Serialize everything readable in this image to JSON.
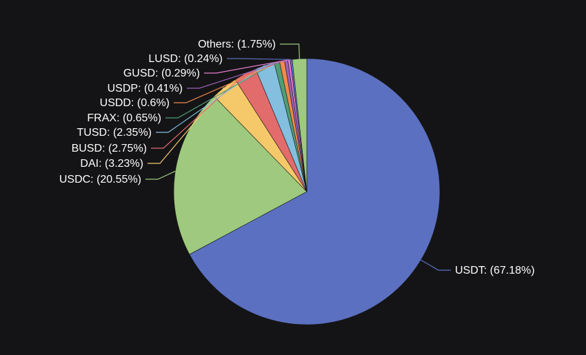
{
  "chart_data": {
    "type": "pie",
    "title": "",
    "legend": "none",
    "slices": [
      {
        "name": "USDT",
        "value": 67.18,
        "label": "USDT: (67.18%)",
        "color": "#5b70c0"
      },
      {
        "name": "USDC",
        "value": 20.55,
        "label": "USDC: (20.55%)",
        "color": "#9ec97e"
      },
      {
        "name": "DAI",
        "value": 3.23,
        "label": "DAI: (3.23%)",
        "color": "#f5c96a"
      },
      {
        "name": "BUSD",
        "value": 2.75,
        "label": "BUSD: (2.75%)",
        "color": "#e26b6b"
      },
      {
        "name": "TUSD",
        "value": 2.35,
        "label": "TUSD: (2.35%)",
        "color": "#84bfdf"
      },
      {
        "name": "FRAX",
        "value": 0.65,
        "label": "FRAX: (0.65%)",
        "color": "#4f9f76"
      },
      {
        "name": "USDD",
        "value": 0.6,
        "label": "USDD: (0.6%)",
        "color": "#f08a4b"
      },
      {
        "name": "USDP",
        "value": 0.41,
        "label": "USDP: (0.41%)",
        "color": "#9b60b8"
      },
      {
        "name": "GUSD",
        "value": 0.29,
        "label": "GUSD: (0.29%)",
        "color": "#e97ccc"
      },
      {
        "name": "LUSD",
        "value": 0.24,
        "label": "LUSD: (0.24%)",
        "color": "#5b70c0"
      },
      {
        "name": "Others",
        "value": 1.75,
        "label": "Others: (1.75%)",
        "color": "#9ec97e"
      }
    ]
  }
}
